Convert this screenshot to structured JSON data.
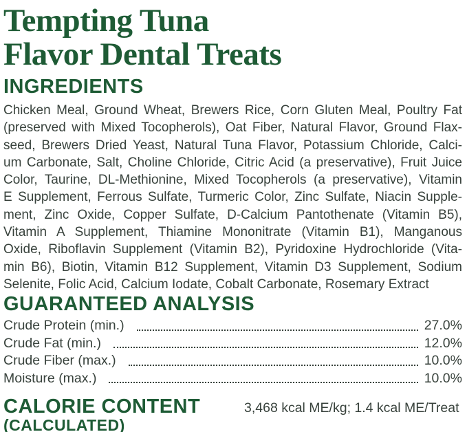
{
  "colors": {
    "green": "#1e5b35",
    "body": "#38423c"
  },
  "title": {
    "line1": "Tempting Tuna",
    "line2": "Flavor Dental Treats"
  },
  "ingredients": {
    "heading": "INGREDIENTS",
    "lines": [
      "Chicken Meal, Ground Wheat, Brewers Rice, Corn Gluten Meal, Poultry Fat",
      "(preserved with Mixed Tocopherols), Oat Fiber, Natural Flavor, Ground Flax-",
      "seed, Brewers Dried Yeast, Natural Tuna Flavor, Potassium Chloride, Calci-",
      "um Carbonate, Salt, Choline Chloride, Citric Acid (a preservative), Fruit Juice",
      "Color, Taurine, DL-Methionine, Mixed Tocopherols (a preservative), Vitamin",
      "E Supplement, Ferrous Sulfate, Turmeric Color, Zinc Sulfate, Niacin Supple-",
      "ment, Zinc Oxide, Copper Sulfate, D-Calcium Pantothenate (Vitamin B5),",
      "Vitamin A Supplement, Thiamine Mononitrate (Vitamin B1), Manganous",
      "Oxide, Riboflavin Supplement (Vitamin B2), Pyridoxine Hydrochloride (Vita-",
      "min B6), Biotin, Vitamin B12 Supplement, Vitamin D3 Supplement, Sodium",
      "Selenite, Folic Acid, Calcium Iodate, Cobalt Carbonate, Rosemary Extract"
    ]
  },
  "guaranteed_analysis": {
    "heading": "GUARANTEED ANALYSIS",
    "rows": [
      {
        "label": "Crude Protein (min.)",
        "value": "27.0%"
      },
      {
        "label": "Crude Fat (min.)",
        "value": "12.0%"
      },
      {
        "label": "Crude Fiber (max.)",
        "value": "10.0%"
      },
      {
        "label": "Moisture (max.)",
        "value": "10.0%"
      }
    ]
  },
  "calorie_content": {
    "heading": "CALORIE CONTENT",
    "subheading": "(CALCULATED)",
    "value": "3,468 kcal ME/kg; 1.4 kcal ME/Treat"
  }
}
